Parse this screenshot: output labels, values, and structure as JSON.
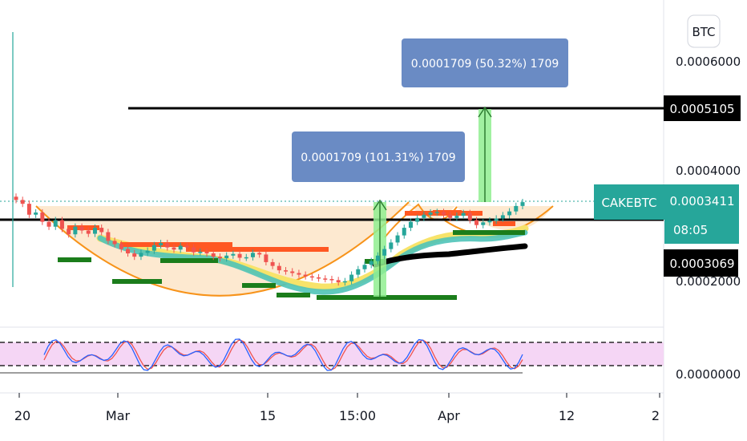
{
  "symbol": "CAKEBTC",
  "currency_badge": "BTC",
  "countdown": "08:05",
  "colors": {
    "up": "#26a69a",
    "down": "#ef5350",
    "cup_fill": "#fde5c8",
    "cup_line": "#f7931a",
    "label_bg": "#6a8bc4",
    "measure_arrow": "#90ee90",
    "ema_fast": "#f7e36a",
    "ema_mid": "#4fc3b8",
    "ema_slow": "#000000",
    "last_price_bg": "#26a69a",
    "stoch_k": "#2962ff",
    "stoch_d": "#ef5350",
    "stoch_band": "#f5d6f5",
    "support_bar": "#1b7d1b",
    "resistance_bar": "#ff5722"
  },
  "price_axis": {
    "ticks": [
      "0.0006000",
      "0.0004000",
      "0.0002000"
    ],
    "stoch_tick": "0.0000000"
  },
  "time_axis": {
    "ticks": [
      "20",
      "Mar",
      "15",
      "15:00",
      "Apr",
      "12",
      "2"
    ]
  },
  "price_labels": {
    "target_line": "0.0005105",
    "last_price": "0.0003411",
    "neckline": "0.0003069"
  },
  "measure_labels": {
    "upper": "0.0001709 (50.32%) 1709",
    "lower": "0.0001709 (101.31%) 1709"
  },
  "chart_data": {
    "type": "candlestick",
    "instrument": "CAKEBTC",
    "currency": "BTC",
    "x_ticks": [
      "20",
      "Mar",
      "15",
      "15:00",
      "Apr",
      "12",
      "2"
    ],
    "y_ticks": [
      0.0006,
      0.0004,
      0.0002,
      0.0
    ],
    "ylim": [
      0.00016,
      0.00067
    ],
    "last_price": 0.0003411,
    "horizontal_lines": [
      0.0005105,
      0.0003069
    ],
    "patterns": [
      "cup and handle"
    ],
    "measurements": [
      {
        "value": 0.0001709,
        "percent": 101.31,
        "bars": 1709,
        "from": 0.0001702,
        "to": 0.0003411
      },
      {
        "value": 0.0001709,
        "percent": 50.32,
        "bars": 1709,
        "from": 0.0003396,
        "to": 0.0005105
      }
    ],
    "closes": [
      0.000345,
      0.000338,
      0.000318,
      0.000322,
      0.000305,
      0.000296,
      0.000308,
      0.000292,
      0.000282,
      0.000296,
      0.000289,
      0.000283,
      0.000294,
      0.000286,
      0.00027,
      0.000264,
      0.000255,
      0.000247,
      0.000241,
      0.000248,
      0.000252,
      0.000262,
      0.000266,
      0.000258,
      0.000254,
      0.000261,
      0.000258,
      0.000249,
      0.00025,
      0.000247,
      0.000241,
      0.000238,
      0.000243,
      0.000246,
      0.000239,
      0.00024,
      0.000248,
      0.000245,
      0.000231,
      0.000224,
      0.000216,
      0.000214,
      0.000211,
      0.000208,
      0.000205,
      0.000203,
      0.000201,
      0.0002,
      0.000198,
      0.000194,
      0.000196,
      0.000208,
      0.000218,
      0.000226,
      0.000233,
      0.000243,
      0.000255,
      0.000267,
      0.00028,
      0.000294,
      0.000305,
      0.000312,
      0.000318,
      0.000322,
      0.000323,
      0.000318,
      0.000312,
      0.000316,
      0.000321,
      0.000308,
      0.000299,
      0.000304,
      0.000307,
      0.000311,
      0.000317,
      0.000324,
      0.000334,
      0.000341
    ]
  }
}
